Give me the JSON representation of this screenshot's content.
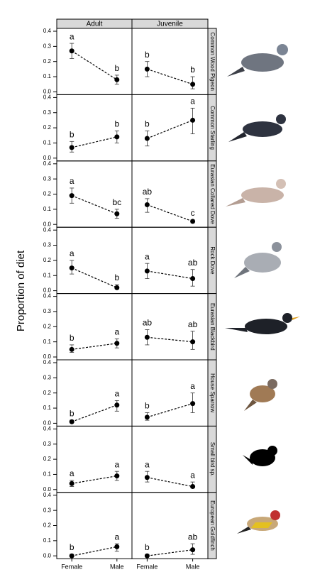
{
  "chart_data": {
    "type": "faceted-line",
    "ylabel": "Proportion of diet",
    "columns": [
      "Adult",
      "Juvenile"
    ],
    "categories": [
      "Female",
      "Male"
    ],
    "ylim": [
      0,
      0.4
    ],
    "yticks": [
      {
        "value": 0,
        "label": "0.0"
      },
      0.1,
      0.2,
      0.3,
      0.4
    ],
    "color": "#000000",
    "rows": [
      {
        "name": "Common Wood Pigeon",
        "panels": [
          {
            "values": [
              0.27,
              0.08
            ],
            "lower": [
              0.22,
              0.05
            ],
            "upper": [
              0.32,
              0.11
            ],
            "letters": [
              "a",
              "b"
            ]
          },
          {
            "values": [
              0.15,
              0.05
            ],
            "lower": [
              0.1,
              0.02
            ],
            "upper": [
              0.2,
              0.1
            ],
            "letters": [
              "b",
              "b"
            ]
          }
        ]
      },
      {
        "name": "Common Starling",
        "panels": [
          {
            "values": [
              0.07,
              0.14
            ],
            "lower": [
              0.04,
              0.1
            ],
            "upper": [
              0.11,
              0.18
            ],
            "letters": [
              "b",
              "b"
            ]
          },
          {
            "values": [
              0.13,
              0.25
            ],
            "lower": [
              0.08,
              0.16
            ],
            "upper": [
              0.18,
              0.33
            ],
            "letters": [
              "b",
              "a"
            ]
          }
        ]
      },
      {
        "name": "Eurasian Collared Dove",
        "panels": [
          {
            "values": [
              0.19,
              0.07
            ],
            "lower": [
              0.14,
              0.04
            ],
            "upper": [
              0.24,
              0.1
            ],
            "letters": [
              "a",
              "bc"
            ]
          },
          {
            "values": [
              0.13,
              0.02
            ],
            "lower": [
              0.08,
              0.01
            ],
            "upper": [
              0.17,
              0.03
            ],
            "letters": [
              "ab",
              "c"
            ]
          }
        ]
      },
      {
        "name": "Rock Dove",
        "panels": [
          {
            "values": [
              0.15,
              0.02
            ],
            "lower": [
              0.11,
              0.01
            ],
            "upper": [
              0.2,
              0.04
            ],
            "letters": [
              "a",
              "b"
            ]
          },
          {
            "values": [
              0.13,
              0.08
            ],
            "lower": [
              0.08,
              0.03
            ],
            "upper": [
              0.18,
              0.14
            ],
            "letters": [
              "a",
              "ab"
            ]
          }
        ]
      },
      {
        "name": "Eurasian Blackbird",
        "panels": [
          {
            "values": [
              0.05,
              0.09
            ],
            "lower": [
              0.03,
              0.06
            ],
            "upper": [
              0.08,
              0.12
            ],
            "letters": [
              "b",
              "a"
            ]
          },
          {
            "values": [
              0.13,
              0.1
            ],
            "lower": [
              0.08,
              0.05
            ],
            "upper": [
              0.18,
              0.17
            ],
            "letters": [
              "ab",
              "ab"
            ]
          }
        ]
      },
      {
        "name": "House Sparrow",
        "panels": [
          {
            "values": [
              0.01,
              0.12
            ],
            "lower": [
              0.005,
              0.08
            ],
            "upper": [
              0.02,
              0.15
            ],
            "letters": [
              "b",
              "a"
            ]
          },
          {
            "values": [
              0.04,
              0.13
            ],
            "lower": [
              0.02,
              0.07
            ],
            "upper": [
              0.07,
              0.2
            ],
            "letters": [
              "b",
              "a"
            ]
          }
        ]
      },
      {
        "name": "Small bird sp.",
        "panels": [
          {
            "values": [
              0.04,
              0.09
            ],
            "lower": [
              0.02,
              0.06
            ],
            "upper": [
              0.06,
              0.12
            ],
            "letters": [
              "a",
              "a"
            ]
          },
          {
            "values": [
              0.08,
              0.02
            ],
            "lower": [
              0.05,
              0.01
            ],
            "upper": [
              0.12,
              0.05
            ],
            "letters": [
              "a",
              "a"
            ]
          }
        ]
      },
      {
        "name": "European Goldfinch",
        "panels": [
          {
            "values": [
              0.0,
              0.06
            ],
            "lower": [
              0.0,
              0.03
            ],
            "upper": [
              0.01,
              0.08
            ],
            "letters": [
              "b",
              "a"
            ]
          },
          {
            "values": [
              0.0,
              0.04
            ],
            "lower": [
              0.0,
              0.01
            ],
            "upper": [
              0.01,
              0.08
            ],
            "letters": [
              "b",
              "ab"
            ]
          }
        ]
      }
    ]
  }
}
